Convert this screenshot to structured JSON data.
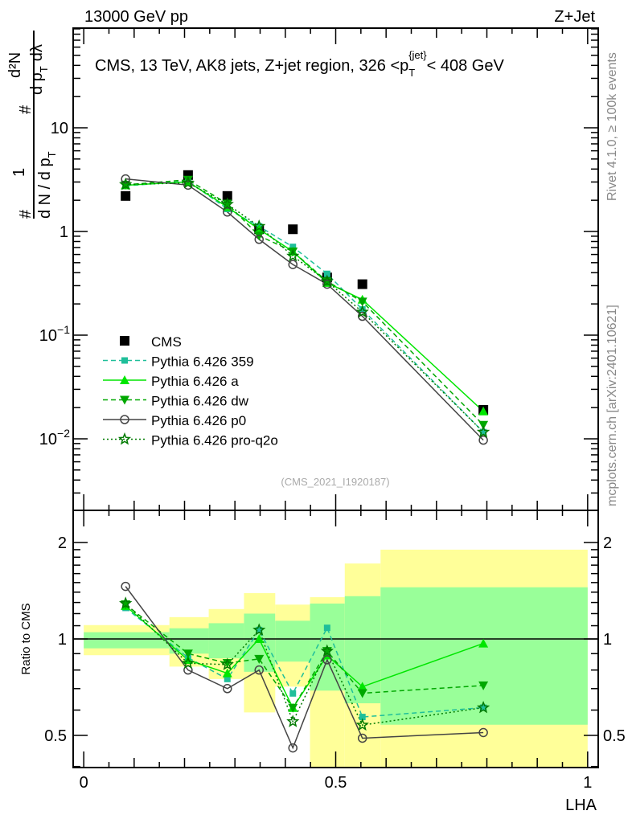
{
  "header": {
    "left": "13000 GeV pp",
    "right": "Z+Jet"
  },
  "title": {
    "pre": "CMS, 13 TeV, AK8 jets, Z+jet region, 326 <p",
    "sub": "T",
    "sup": "{jet}",
    "post": "< 408 GeV"
  },
  "side_text": {
    "top": "Rivet 4.1.0, ≥ 100k events",
    "bottom": "mcplots.cern.ch [arXiv:2401.10621]"
  },
  "analysis_id": "(CMS_2021_I1920187)",
  "ylabel": {
    "hash": "#",
    "one": "1",
    "dn": "d N / d p",
    "t": "T",
    "d2n": "d²N",
    "dpt": "d p",
    "dlambda": "dλ"
  },
  "chart_data": [
    {
      "type": "line",
      "scale": "log",
      "xlim": [
        -0.021,
        1.021
      ],
      "ylim": [
        0.00204,
        91.5
      ],
      "yticks": [
        {
          "v": 10,
          "label": "10"
        },
        {
          "v": 1,
          "label": "1"
        },
        {
          "v": 0.1,
          "base": "10",
          "exp": "−1"
        },
        {
          "v": 0.01,
          "base": "10",
          "exp": "−2"
        }
      ],
      "x": [
        0.083,
        0.207,
        0.285,
        0.348,
        0.415,
        0.483,
        0.553,
        0.793
      ],
      "series": [
        {
          "name": "CMS",
          "color": "#000000",
          "marker": "square",
          "line": "none",
          "values": [
            2.2,
            3.5,
            2.2,
            1.05,
            1.05,
            0.36,
            0.31,
            0.019
          ]
        },
        {
          "name": "Pythia 6.426 359",
          "color": "#1fbf9a",
          "marker": "smallsquare",
          "line": "dashed",
          "values": [
            2.75,
            3.06,
            1.65,
            1.12,
            0.71,
            0.39,
            0.177,
            0.0116
          ]
        },
        {
          "name": "Pythia 6.426 a",
          "color": "#00e600",
          "marker": "triup",
          "line": "solid",
          "values": [
            2.79,
            3.01,
            1.72,
            1.05,
            0.64,
            0.32,
            0.22,
            0.0184
          ]
        },
        {
          "name": "Pythia 6.426 dw",
          "color": "#00a800",
          "marker": "tridown",
          "line": "dashed",
          "values": [
            2.82,
            3.15,
            1.85,
            0.91,
            0.64,
            0.33,
            0.21,
            0.0136
          ]
        },
        {
          "name": "Pythia 6.426 p0",
          "color": "#444444",
          "marker": "circle",
          "line": "solid",
          "values": [
            3.21,
            2.8,
            1.54,
            0.84,
            0.48,
            0.31,
            0.152,
            0.0097
          ]
        },
        {
          "name": "Pythia 6.426 pro-q2o",
          "color": "#007a00",
          "marker": "star",
          "line": "dotted",
          "values": [
            2.84,
            2.94,
            1.83,
            1.12,
            0.58,
            0.33,
            0.167,
            0.0116
          ]
        }
      ],
      "legend": "left-middle"
    },
    {
      "type": "line",
      "scale": "log",
      "ylabel": "Ratio to CMS",
      "xlabel": "LHA",
      "xlim": [
        -0.021,
        1.021
      ],
      "ylim": [
        0.397,
        2.52
      ],
      "yticks": [
        {
          "v": 0.5,
          "label": "0.5"
        },
        {
          "v": 1,
          "label": "1"
        },
        {
          "v": 2,
          "label": "2"
        }
      ],
      "xticks": [
        {
          "v": 0,
          "label": "0"
        },
        {
          "v": 0.5,
          "label": "0.5"
        },
        {
          "v": 1,
          "label": "1"
        }
      ],
      "bin_edges": [
        0,
        0.17,
        0.248,
        0.318,
        0.38,
        0.449,
        0.518,
        0.589,
        1.0
      ],
      "band_total": [
        [
          0.89,
          1.105
        ],
        [
          0.82,
          1.17
        ],
        [
          0.75,
          1.24
        ],
        [
          0.59,
          1.39
        ],
        [
          0.71,
          1.28
        ],
        [
          0.3,
          1.35
        ],
        [
          0.3,
          1.72
        ],
        [
          0.3,
          1.9
        ]
      ],
      "band_stat": [
        [
          0.935,
          1.05
        ],
        [
          0.9,
          1.08
        ],
        [
          0.87,
          1.12
        ],
        [
          0.79,
          1.2
        ],
        [
          0.85,
          1.14
        ],
        [
          0.69,
          1.29
        ],
        [
          0.63,
          1.36
        ],
        [
          0.54,
          1.45
        ]
      ],
      "band_colors": {
        "total": "#ffff99",
        "stat": "#99ff99"
      }
    }
  ]
}
